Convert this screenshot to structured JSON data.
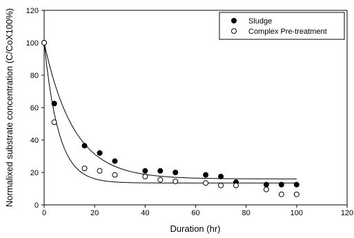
{
  "chart_data": {
    "type": "scatter",
    "xlabel": "Duration (hr)",
    "ylabel": "Normalixed substrate concentration (C/CoX100%)",
    "xlim": [
      0,
      120
    ],
    "ylim": [
      0,
      120
    ],
    "x_ticks": [
      0,
      20,
      40,
      60,
      80,
      100,
      120
    ],
    "y_ticks": [
      0,
      20,
      40,
      60,
      80,
      100,
      120
    ],
    "grid": false,
    "legend_position": "top-right",
    "series": [
      {
        "name": "Sludge",
        "marker": "filled-circle",
        "color": "#000000",
        "x": [
          0,
          4,
          16,
          22,
          28,
          40,
          46,
          52,
          64,
          70,
          76,
          88,
          94,
          100
        ],
        "y": [
          100,
          62.5,
          36.5,
          32,
          27,
          21,
          21,
          20,
          18.5,
          17.5,
          14,
          12.5,
          12.5,
          12.5
        ]
      },
      {
        "name": "Complex Pre-treatment",
        "marker": "open-circle",
        "color": "#000000",
        "x": [
          0,
          4,
          16,
          22,
          28,
          40,
          46,
          52,
          64,
          70,
          76,
          88,
          94,
          100
        ],
        "y": [
          100,
          51,
          22.5,
          21,
          18.5,
          17.5,
          15.5,
          14.5,
          13.5,
          12,
          12,
          9.5,
          6.5,
          6.5
        ]
      }
    ]
  }
}
